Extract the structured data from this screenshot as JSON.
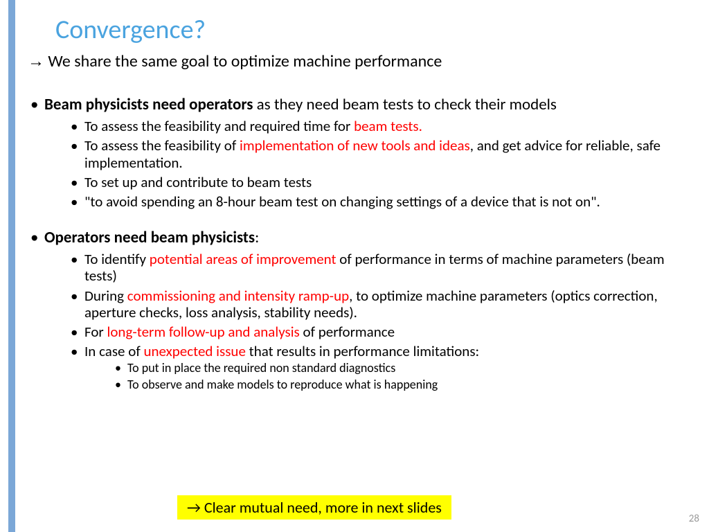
{
  "title": "Convergence?",
  "intro_arrow": "→",
  "intro_text": " We share the same goal to optimize machine performance",
  "section1": {
    "lead_bold": "Beam physicists need operators",
    "lead_rest": " as they need beam tests to check their models",
    "b1_pre": "To assess the feasibility and required time for ",
    "b1_red": "beam tests.",
    "b2_pre": "To assess the feasibility of ",
    "b2_red": "implementation of new tools and ideas",
    "b2_post": ", and get advice for reliable, safe implementation.",
    "b3": "To set up and contribute to beam tests",
    "b4": "\"to avoid spending an 8-hour beam test on changing settings of a device that is not on\"."
  },
  "section2": {
    "lead_bold": "Operators need beam physicists",
    "lead_rest": ":",
    "b1_pre": "To identify ",
    "b1_red": "potential areas of improvement",
    "b1_post": " of performance in terms of machine parameters (beam tests)",
    "b2_pre": "During ",
    "b2_red": "commissioning and intensity ramp-up",
    "b2_post": ", to optimize machine parameters (optics correction, aperture checks, loss analysis, stability needs).",
    "b3_pre": "For ",
    "b3_red": "long-term follow-up and analysis",
    "b3_post": " of performance",
    "b4_pre": "In case of ",
    "b4_red": "unexpected issue",
    "b4_post": " that results in performance limitations:",
    "b4_s1": "To put in place the required non standard diagnostics",
    "b4_s2": "To observe and make models to reproduce what is happening"
  },
  "highlight_arrow": "→",
  "highlight_text": " Clear mutual need, more in next slides",
  "page_number": "28",
  "colors": {
    "title": "#4aa3df",
    "left_bar": "#7ba7d7",
    "emphasis": "#ff0000",
    "highlight_bg": "#ffff00",
    "page_num": "#9a9a9a"
  }
}
